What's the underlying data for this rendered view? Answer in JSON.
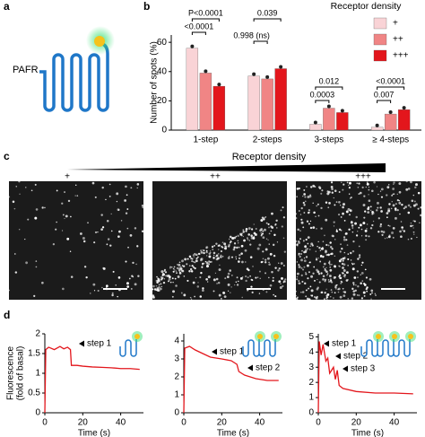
{
  "figure": {
    "panel_labels": [
      "a",
      "b",
      "c",
      "d"
    ],
    "receptor": "PAFR",
    "density_title": "Receptor density",
    "image_labels": [
      "+",
      "++",
      "+++"
    ]
  },
  "chart_data": [
    {
      "type": "bar",
      "ylabel": "Number of spots (%)",
      "legend_title": "Receptor density",
      "categories": [
        "1-step",
        "2-steps",
        "3-steps",
        "≥ 4-steps"
      ],
      "series": [
        {
          "name": "+",
          "color": "#f9d3d6",
          "values": [
            56,
            37,
            4,
            2
          ]
        },
        {
          "name": "++",
          "color": "#f08585",
          "values": [
            39,
            35,
            15,
            11
          ]
        },
        {
          "name": "+++",
          "color": "#e3161c",
          "values": [
            30,
            42,
            12,
            14
          ]
        }
      ],
      "ylim": [
        0,
        65
      ],
      "yticks": [
        0,
        20,
        40,
        60
      ],
      "annotations": [
        "P<0.0001",
        "<0.0001",
        "0.039",
        "0.998 (ns)",
        "0.012",
        "0.0003",
        "<0.0001",
        "0.007"
      ]
    },
    {
      "type": "line",
      "ylabel": [
        "Fluorescence",
        "(fold of basal)"
      ],
      "xlabel": "Time (s)",
      "x": [
        0,
        0.5,
        2,
        5,
        8,
        10,
        12,
        13.5,
        14,
        17,
        20,
        25,
        30,
        35,
        40,
        45,
        50
      ],
      "series": [
        {
          "color": "#e3161c",
          "values": [
            0,
            1.6,
            1.66,
            1.6,
            1.68,
            1.62,
            1.66,
            1.6,
            1.2,
            1.2,
            1.18,
            1.16,
            1.15,
            1.14,
            1.12,
            1.12,
            1.1
          ]
        }
      ],
      "xlim": [
        0,
        52
      ],
      "xticks": [
        0,
        20,
        40
      ],
      "ylim": [
        0,
        2
      ],
      "yticks": [
        0,
        0.5,
        1,
        1.5,
        2
      ],
      "annotations": [
        "step 1"
      ]
    },
    {
      "type": "line",
      "xlabel": "Time (s)",
      "x": [
        0,
        0.5,
        3,
        6,
        10,
        14,
        20,
        25,
        28,
        29,
        32,
        38,
        44,
        50
      ],
      "series": [
        {
          "color": "#e3161c",
          "values": [
            0,
            3.6,
            3.7,
            3.5,
            3.3,
            3.1,
            3.0,
            2.9,
            2.7,
            2.3,
            2.1,
            1.9,
            1.8,
            1.8
          ]
        }
      ],
      "xlim": [
        0,
        52
      ],
      "xticks": [
        0,
        20,
        40
      ],
      "ylim": [
        0,
        4.4
      ],
      "yticks": [
        0,
        1,
        2,
        3,
        4
      ],
      "annotations": [
        "step 1",
        "step 2"
      ]
    },
    {
      "type": "line",
      "xlabel": "Time (s)",
      "x": [
        0,
        0.5,
        1.5,
        2.5,
        4,
        5,
        6,
        8,
        9,
        10,
        11,
        13,
        20,
        30,
        40,
        50
      ],
      "series": [
        {
          "color": "#e3161c",
          "values": [
            0,
            4.7,
            3.8,
            4.5,
            3.4,
            3.6,
            2.6,
            3.0,
            2.2,
            2.8,
            1.8,
            1.6,
            1.4,
            1.3,
            1.3,
            1.25
          ]
        }
      ],
      "xlim": [
        0,
        52
      ],
      "xticks": [
        0,
        20,
        40
      ],
      "ylim": [
        0,
        5.2
      ],
      "yticks": [
        0,
        1,
        2,
        3,
        4,
        5
      ],
      "annotations": [
        "step 1",
        "step 2",
        "step 3"
      ]
    }
  ]
}
